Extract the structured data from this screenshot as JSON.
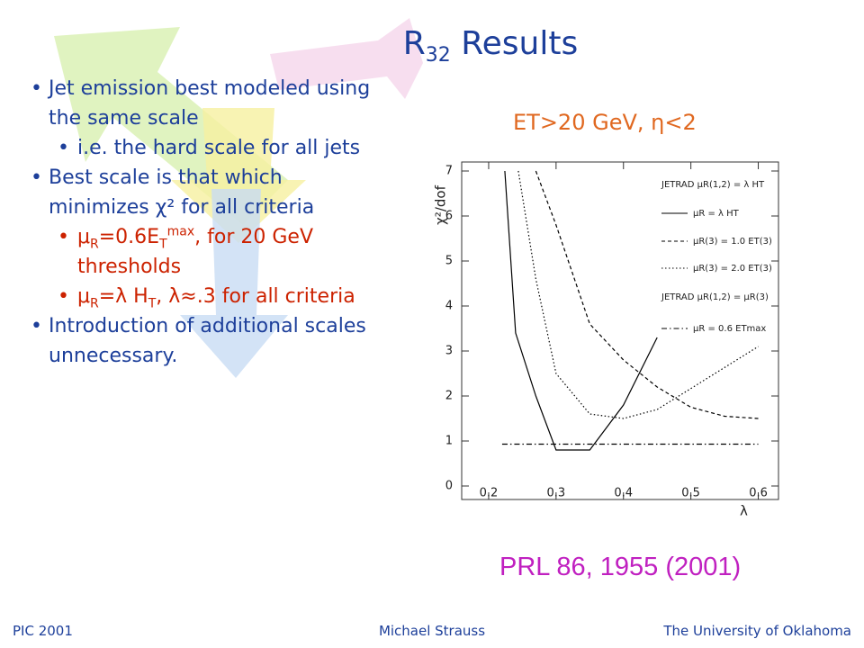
{
  "slide": {
    "title": [
      "R",
      {
        "sub": "32"
      },
      " Results"
    ],
    "bullets": [
      {
        "level": 1,
        "color": "#1d3f9a",
        "text": [
          "Jet emission best modeled using the same scale"
        ]
      },
      {
        "level": 2,
        "color": "#1d3f9a",
        "text": [
          "i.e. the hard scale for all jets"
        ]
      },
      {
        "level": 1,
        "color": "#1d3f9a",
        "text": [
          "Best scale is that which minimizes χ² for all criteria"
        ]
      },
      {
        "level": 2,
        "color": "#cc2200",
        "text": [
          "μ",
          {
            "sub": "R"
          },
          "=0.6E",
          {
            "sub": "T"
          },
          {
            "sup": "max"
          },
          ",  for 20 GeV thresholds"
        ]
      },
      {
        "level": 2,
        "color": "#cc2200",
        "text": [
          "μ",
          {
            "sub": "R"
          },
          "=λ H",
          {
            "sub": "T"
          },
          ",  λ≈.3 for all criteria"
        ]
      },
      {
        "level": 1,
        "color": "#1d3f9a",
        "text": [
          "Introduction of additional scales unnecessary."
        ]
      }
    ],
    "chart_heading": "ET>20 GeV, η<2",
    "citation": "PRL 86, 1955 (2001)",
    "footer": {
      "left": "PIC 2001",
      "center": "Michael Strauss",
      "right": "The University of Oklahoma"
    }
  },
  "chart_data": {
    "type": "line",
    "x_label": "λ",
    "y_label": "χ²/dof",
    "xlim": [
      0.16,
      0.63
    ],
    "ylim": [
      -0.3,
      7.2
    ],
    "xticks": [
      0.2,
      0.3,
      0.4,
      0.5,
      0.6
    ],
    "yticks": [
      0,
      1,
      2,
      3,
      4,
      5,
      6,
      7
    ],
    "annotations": [
      "JETRAD μR(1,2) = λ HT",
      "JETRAD μR(1,2) = μR(3)"
    ],
    "series": [
      {
        "name": "μR = λ HT",
        "color": "#000000",
        "dash": "solid",
        "x": [
          0.224,
          0.24,
          0.27,
          0.3,
          0.35,
          0.4,
          0.45
        ],
        "values": [
          7,
          3.4,
          2.0,
          0.8,
          0.8,
          1.8,
          3.3
        ]
      },
      {
        "name": "μR(3) = 1.0 ET(3)",
        "color": "#000000",
        "dash": "dashed",
        "x": [
          0.27,
          0.3,
          0.35,
          0.4,
          0.45,
          0.5,
          0.55,
          0.6
        ],
        "values": [
          7,
          5.8,
          3.6,
          2.8,
          2.2,
          1.75,
          1.55,
          1.5
        ]
      },
      {
        "name": "μR(3) = 2.0 ET(3)",
        "color": "#000000",
        "dash": "dotted",
        "x": [
          0.244,
          0.27,
          0.3,
          0.35,
          0.4,
          0.45,
          0.6
        ],
        "values": [
          7,
          4.6,
          2.5,
          1.6,
          1.5,
          1.7,
          3.1
        ]
      },
      {
        "name": "μR = 0.6 ETmax",
        "color": "#000000",
        "dash": "dashdot",
        "x": [
          0.22,
          0.6
        ],
        "values": [
          0.93,
          0.93
        ]
      }
    ]
  }
}
